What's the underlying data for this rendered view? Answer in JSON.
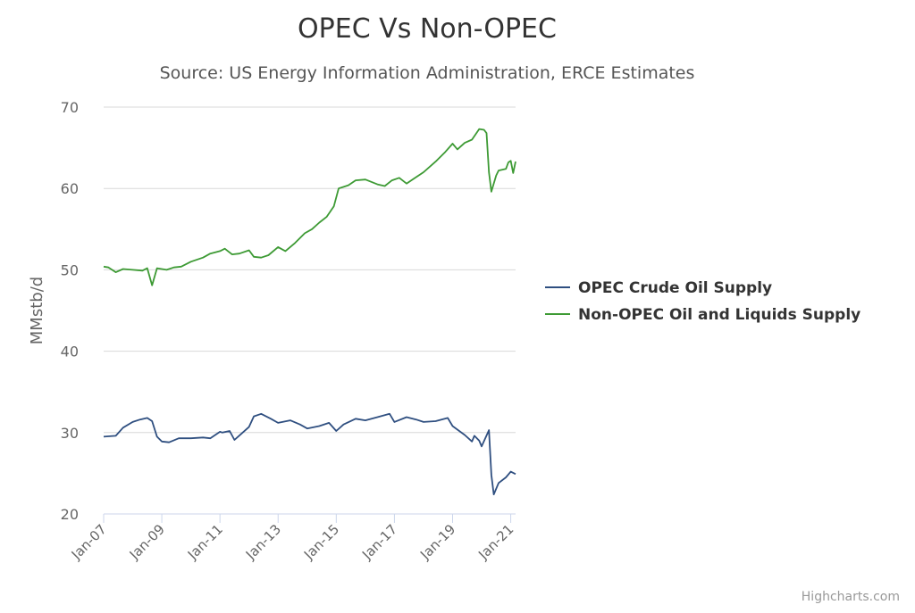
{
  "chart_data": {
    "type": "line",
    "title": "OPEC Vs Non-OPEC",
    "subtitle": "Source: US Energy Information Administration, ERCE Estimates",
    "ylabel": "MMstb/d",
    "xlabel": "",
    "ylim": [
      20,
      70
    ],
    "yticks": [
      20,
      30,
      40,
      50,
      60,
      70
    ],
    "xticks": [
      "Jan-07",
      "Jan-09",
      "Jan-11",
      "Jan-13",
      "Jan-15",
      "Jan-17",
      "Jan-19",
      "Jan-21"
    ],
    "xrange": [
      "2007-01",
      "2021-03"
    ],
    "grid": "horizontal",
    "legend_position": "right",
    "credit": "Highcharts.com",
    "series": [
      {
        "name": "OPEC Crude Oil Supply",
        "color": "#2f4f80",
        "points": [
          [
            "2007-01",
            29.5
          ],
          [
            "2007-06",
            29.6
          ],
          [
            "2007-09",
            30.6
          ],
          [
            "2008-01",
            31.3
          ],
          [
            "2008-04",
            31.6
          ],
          [
            "2008-07",
            31.8
          ],
          [
            "2008-09",
            31.4
          ],
          [
            "2008-11",
            29.5
          ],
          [
            "2009-01",
            28.9
          ],
          [
            "2009-04",
            28.8
          ],
          [
            "2009-08",
            29.3
          ],
          [
            "2010-01",
            29.3
          ],
          [
            "2010-06",
            29.4
          ],
          [
            "2010-09",
            29.3
          ],
          [
            "2011-01",
            30.1
          ],
          [
            "2011-02",
            30.0
          ],
          [
            "2011-05",
            30.2
          ],
          [
            "2011-07",
            29.1
          ],
          [
            "2011-10",
            29.9
          ],
          [
            "2012-01",
            30.7
          ],
          [
            "2012-03",
            32.0
          ],
          [
            "2012-06",
            32.3
          ],
          [
            "2012-10",
            31.7
          ],
          [
            "2013-01",
            31.2
          ],
          [
            "2013-06",
            31.5
          ],
          [
            "2013-10",
            31.0
          ],
          [
            "2014-01",
            30.5
          ],
          [
            "2014-06",
            30.8
          ],
          [
            "2014-10",
            31.2
          ],
          [
            "2015-01",
            30.2
          ],
          [
            "2015-04",
            31.0
          ],
          [
            "2015-09",
            31.7
          ],
          [
            "2016-01",
            31.5
          ],
          [
            "2016-06",
            31.9
          ],
          [
            "2016-11",
            32.3
          ],
          [
            "2017-01",
            31.3
          ],
          [
            "2017-06",
            31.9
          ],
          [
            "2017-10",
            31.6
          ],
          [
            "2018-01",
            31.3
          ],
          [
            "2018-06",
            31.4
          ],
          [
            "2018-11",
            31.8
          ],
          [
            "2019-01",
            30.8
          ],
          [
            "2019-06",
            29.7
          ],
          [
            "2019-09",
            28.9
          ],
          [
            "2019-10",
            29.6
          ],
          [
            "2019-12",
            29.0
          ],
          [
            "2020-01",
            28.3
          ],
          [
            "2020-04",
            30.3
          ],
          [
            "2020-05",
            24.8
          ],
          [
            "2020-06",
            22.4
          ],
          [
            "2020-08",
            23.8
          ],
          [
            "2020-11",
            24.5
          ],
          [
            "2021-01",
            25.2
          ],
          [
            "2021-03",
            24.9
          ]
        ]
      },
      {
        "name": "Non-OPEC Oil and Liquids Supply",
        "color": "#3d9a34",
        "points": [
          [
            "2007-01",
            50.4
          ],
          [
            "2007-03",
            50.3
          ],
          [
            "2007-06",
            49.7
          ],
          [
            "2007-09",
            50.1
          ],
          [
            "2008-01",
            50.0
          ],
          [
            "2008-05",
            49.9
          ],
          [
            "2008-07",
            50.2
          ],
          [
            "2008-09",
            48.1
          ],
          [
            "2008-11",
            50.2
          ],
          [
            "2009-03",
            50.0
          ],
          [
            "2009-06",
            50.3
          ],
          [
            "2009-09",
            50.4
          ],
          [
            "2010-01",
            51.0
          ],
          [
            "2010-06",
            51.5
          ],
          [
            "2010-09",
            52.0
          ],
          [
            "2011-01",
            52.3
          ],
          [
            "2011-03",
            52.6
          ],
          [
            "2011-06",
            51.9
          ],
          [
            "2011-09",
            52.0
          ],
          [
            "2012-01",
            52.4
          ],
          [
            "2012-03",
            51.6
          ],
          [
            "2012-06",
            51.5
          ],
          [
            "2012-09",
            51.8
          ],
          [
            "2013-01",
            52.8
          ],
          [
            "2013-04",
            52.3
          ],
          [
            "2013-08",
            53.3
          ],
          [
            "2013-12",
            54.5
          ],
          [
            "2014-03",
            55.0
          ],
          [
            "2014-06",
            55.8
          ],
          [
            "2014-09",
            56.5
          ],
          [
            "2014-12",
            57.8
          ],
          [
            "2015-02",
            60.0
          ],
          [
            "2015-06",
            60.4
          ],
          [
            "2015-09",
            61.0
          ],
          [
            "2016-01",
            61.1
          ],
          [
            "2016-06",
            60.5
          ],
          [
            "2016-09",
            60.3
          ],
          [
            "2016-12",
            61.0
          ],
          [
            "2017-03",
            61.3
          ],
          [
            "2017-06",
            60.6
          ],
          [
            "2017-09",
            61.2
          ],
          [
            "2018-01",
            62.0
          ],
          [
            "2018-06",
            63.3
          ],
          [
            "2018-10",
            64.5
          ],
          [
            "2019-01",
            65.5
          ],
          [
            "2019-03",
            64.8
          ],
          [
            "2019-06",
            65.6
          ],
          [
            "2019-09",
            66.0
          ],
          [
            "2019-12",
            67.3
          ],
          [
            "2020-02",
            67.2
          ],
          [
            "2020-03",
            66.8
          ],
          [
            "2020-04",
            62.0
          ],
          [
            "2020-05",
            59.6
          ],
          [
            "2020-07",
            61.6
          ],
          [
            "2020-08",
            62.2
          ],
          [
            "2020-11",
            62.4
          ],
          [
            "2020-12",
            63.2
          ],
          [
            "2021-01",
            63.4
          ],
          [
            "2021-02",
            61.9
          ],
          [
            "2021-03",
            63.3
          ]
        ]
      }
    ]
  }
}
